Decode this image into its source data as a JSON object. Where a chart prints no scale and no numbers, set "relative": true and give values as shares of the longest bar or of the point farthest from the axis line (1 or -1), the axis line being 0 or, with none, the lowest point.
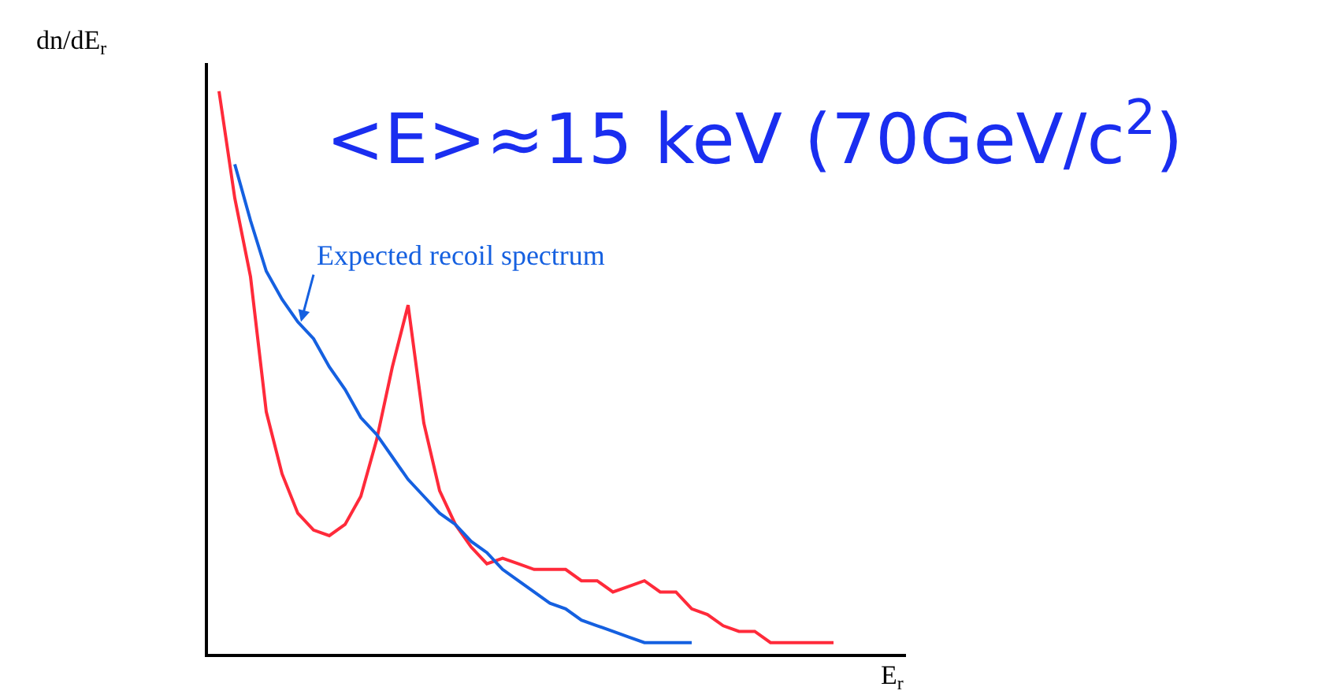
{
  "chart_data": {
    "type": "line",
    "relative": true,
    "xlabel": "E$_{r}$",
    "ylabel": "dn/dE$_{r}$",
    "categories": [
      null,
      null,
      null,
      null,
      null,
      null,
      null,
      null,
      null,
      null,
      null,
      null,
      null,
      null,
      null,
      null,
      null,
      null,
      null,
      null,
      null,
      null,
      null,
      null,
      null,
      null,
      null,
      null,
      null,
      null,
      null,
      null,
      null,
      null,
      null,
      null,
      null,
      null,
      null,
      null
    ],
    "series": [
      {
        "color": "#ff2a3a",
        "values": [
          1.0,
          0.81,
          0.67,
          0.43,
          0.32,
          0.25,
          0.22,
          0.21,
          0.23,
          0.28,
          0.38,
          0.51,
          0.62,
          0.41,
          0.29,
          0.23,
          0.19,
          0.16,
          0.17,
          0.16,
          0.15,
          0.15,
          0.15,
          0.13,
          0.13,
          0.11,
          0.12,
          0.13,
          0.11,
          0.11,
          0.08,
          0.07,
          0.05,
          0.04,
          0.04,
          0.02,
          0.02,
          0.02,
          0.02,
          0.02
        ]
      },
      {
        "color": "#1560e0",
        "values": [
          null,
          0.87,
          0.77,
          0.68,
          0.63,
          0.59,
          0.56,
          0.51,
          0.47,
          0.42,
          0.39,
          0.35,
          0.31,
          0.28,
          0.25,
          0.23,
          0.2,
          0.18,
          0.15,
          0.13,
          0.11,
          0.09,
          0.08,
          0.06,
          0.05,
          0.04,
          0.03,
          0.02,
          0.02,
          0.02,
          0.02,
          null,
          null,
          null,
          null,
          null,
          null,
          null,
          null,
          null
        ]
      }
    ],
    "annotations": [
      "<E>≈15 keV (70GeV/c$^{2}$)",
      "Expected recoil spectrum"
    ],
    "marker": "none",
    "line_style": "solid"
  }
}
